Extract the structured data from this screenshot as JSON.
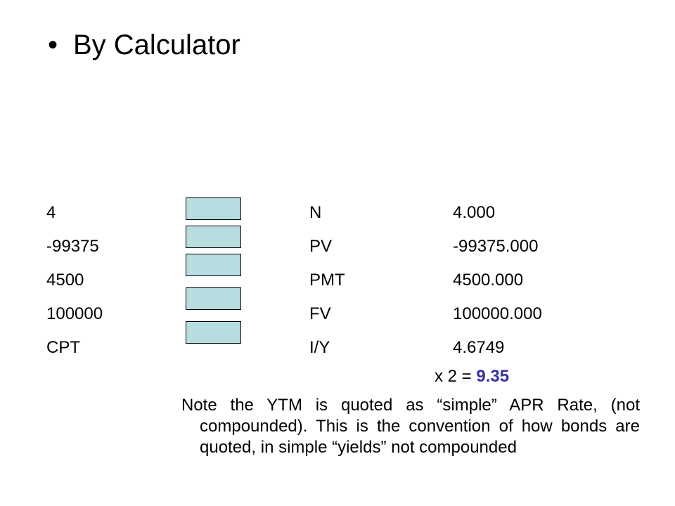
{
  "title": {
    "bullet": "•",
    "text": "By Calculator"
  },
  "calculator": {
    "rows": [
      {
        "input": "4",
        "key": "N",
        "result": "4.000"
      },
      {
        "input": "-99375",
        "key": "PV",
        "result": "-99375.000"
      },
      {
        "input": "4500",
        "key": "PMT",
        "result": "4500.000"
      },
      {
        "input": "100000",
        "key": "FV",
        "result": "100000.000"
      },
      {
        "input": "CPT",
        "key": "I/Y",
        "result": "4.6749"
      }
    ],
    "key_color": "#b7dde0"
  },
  "multiply": {
    "prefix": "x 2 = ",
    "value": "9.35",
    "value_color": "#3333a0"
  },
  "note": "Note the YTM is quoted as “simple” APR Rate, (not compounded).  This is the convention of how bonds are quoted, in simple “yields” not compounded"
}
